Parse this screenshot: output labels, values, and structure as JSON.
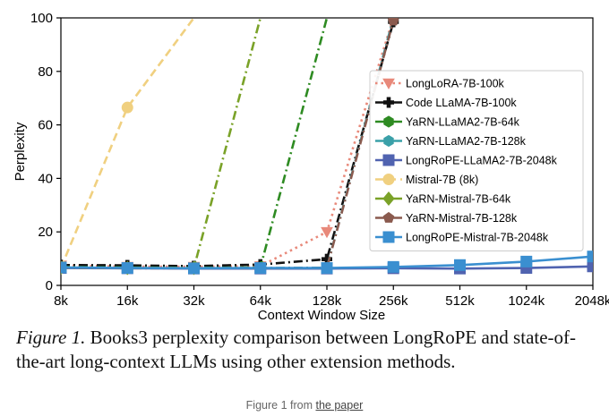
{
  "chart_data": {
    "type": "line",
    "xlabel": "Context Window Size",
    "ylabel": "Perplexity",
    "x": [
      "8k",
      "16k",
      "32k",
      "64k",
      "128k",
      "256k",
      "512k",
      "1024k",
      "2048k"
    ],
    "ylim": [
      0,
      100
    ],
    "yticks": [
      0,
      20,
      40,
      60,
      80,
      100
    ],
    "grid": false,
    "legend_position": "right",
    "series": [
      {
        "name": "LongLoRA-7B-100k",
        "color": "#e8897a",
        "style": "dotted",
        "marker": "triangle-down",
        "values": [
          7.5,
          7.0,
          7.0,
          7.2,
          20,
          100,
          null,
          null,
          null
        ]
      },
      {
        "name": "Code LLaMA-7B-100k",
        "color": "#111111",
        "style": "dashdot",
        "marker": "plus",
        "values": [
          7.6,
          7.5,
          7.2,
          7.8,
          9.8,
          98.5,
          null,
          null,
          null
        ]
      },
      {
        "name": "YaRN-LLaMA2-7B-64k",
        "color": "#2e8b22",
        "style": "dashdot",
        "marker": "hexagon",
        "values": [
          6.9,
          6.7,
          6.6,
          6.7,
          100,
          null,
          null,
          null,
          null
        ]
      },
      {
        "name": "YaRN-LLaMA2-7B-128k",
        "color": "#3aa0a8",
        "style": "dashdot",
        "marker": "hexagon",
        "values": [
          6.8,
          6.6,
          6.5,
          6.5,
          6.6,
          100,
          null,
          null,
          null
        ]
      },
      {
        "name": "LongRoPE-LLaMA2-7B-2048k",
        "color": "#5063b0",
        "style": "solid",
        "marker": "square",
        "values": [
          6.5,
          6.4,
          6.3,
          6.3,
          6.3,
          6.4,
          6.3,
          6.5,
          7.1
        ]
      },
      {
        "name": "Mistral-7B (8k)",
        "color": "#f0d080",
        "style": "dashed",
        "marker": "circle",
        "values": [
          6.5,
          66.5,
          100,
          null,
          null,
          null,
          null,
          null,
          null
        ]
      },
      {
        "name": "YaRN-Mistral-7B-64k",
        "color": "#7aa228",
        "style": "dashdot",
        "marker": "diamond",
        "values": [
          6.6,
          6.5,
          6.5,
          100,
          null,
          null,
          null,
          null,
          null
        ]
      },
      {
        "name": "YaRN-Mistral-7B-128k",
        "color": "#8a5a4e",
        "style": "dashdot",
        "marker": "pentagon",
        "values": [
          6.6,
          6.4,
          6.4,
          6.4,
          6.5,
          99,
          null,
          null,
          null
        ]
      },
      {
        "name": "LongRoPE-Mistral-7B-2048k",
        "color": "#3a8fd0",
        "style": "solid",
        "marker": "square",
        "values": [
          6.7,
          6.5,
          6.4,
          6.5,
          6.5,
          6.9,
          7.6,
          8.9,
          10.8
        ]
      }
    ]
  },
  "caption": {
    "figure_label": "Figure 1.",
    "text": " Books3 perplexity comparison between LongRoPE and state-of-the-art long-context LLMs using other extension methods."
  },
  "source": {
    "prefix": "Figure 1 from ",
    "link_text": "the paper"
  }
}
